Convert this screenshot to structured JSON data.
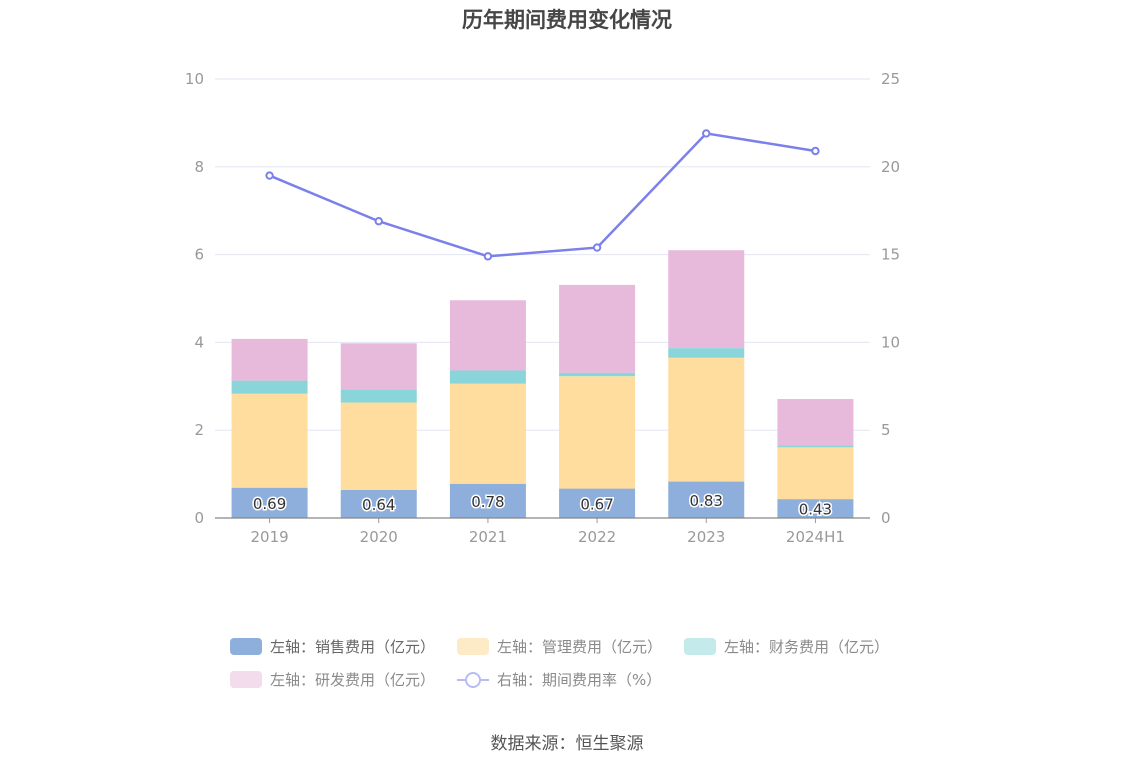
{
  "title": "历年期间费用变化情况",
  "source": "数据来源：恒生聚源",
  "legend": [
    {
      "label": "左轴：销售费用（亿元）",
      "color": "#8eaedc"
    },
    {
      "label": "左轴：管理费用（亿元）",
      "color": "#fedd9e"
    },
    {
      "label": "左轴：财务费用（亿元）",
      "color": "#8ad5d9"
    },
    {
      "label": "左轴：研发费用（亿元）",
      "color": "#e7b9db"
    },
    {
      "label": "右轴：期间费用率（%）",
      "color": "#7b80ea"
    }
  ],
  "chart_data": {
    "type": "bar",
    "stacked": true,
    "categories": [
      "2019",
      "2020",
      "2021",
      "2022",
      "2023",
      "2024H1"
    ],
    "series": [
      {
        "name": "左轴：销售费用（亿元）",
        "axis": "left",
        "color": "#8eaedc",
        "values": [
          0.69,
          0.64,
          0.78,
          0.67,
          0.83,
          0.43
        ],
        "data_labels": [
          "0.69",
          "0.64",
          "0.78",
          "0.67",
          "0.83",
          "0.43"
        ]
      },
      {
        "name": "左轴：管理费用（亿元）",
        "axis": "left",
        "color": "#fedd9e",
        "values": [
          2.14,
          1.99,
          2.28,
          2.56,
          2.82,
          1.18
        ]
      },
      {
        "name": "左轴：财务费用（亿元）",
        "axis": "left",
        "color": "#8ad5d9",
        "values": [
          0.3,
          0.3,
          0.3,
          0.08,
          0.22,
          0.04
        ]
      },
      {
        "name": "左轴：研发费用（亿元）",
        "axis": "left",
        "color": "#e7b9db",
        "values": [
          0.95,
          1.05,
          1.6,
          2.0,
          2.23,
          1.06
        ]
      },
      {
        "name": "右轴：期间费用率（%）",
        "axis": "right",
        "type": "line",
        "color": "#7b80ea",
        "values": [
          19.5,
          16.9,
          14.9,
          15.4,
          21.9,
          20.9
        ]
      }
    ],
    "y_left": {
      "min": 0,
      "max": 10,
      "ticks": [
        "0",
        "2",
        "4",
        "6",
        "8",
        "10"
      ]
    },
    "y_right": {
      "min": 0,
      "max": 25,
      "ticks": [
        "0",
        "5",
        "10",
        "15",
        "20",
        "25"
      ]
    },
    "grid": true,
    "legend_position": "bottom"
  }
}
